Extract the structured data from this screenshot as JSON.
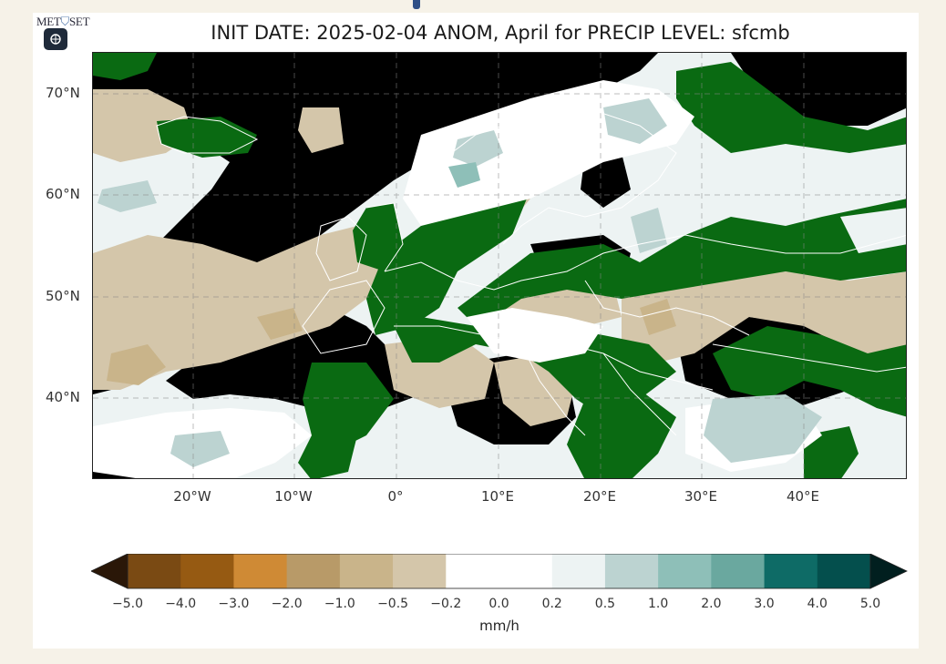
{
  "header": {
    "logo_text_left": "MET",
    "logo_text_right": "SET",
    "logo_icon": "shield-icon",
    "menu_icon": "menu-icon"
  },
  "map": {
    "title": "INIT DATE: 2025-02-04 ANOM, April for PRECIP LEVEL: sfcmb",
    "longitude_labels": [
      "20°W",
      "10°W",
      "0°",
      "10°E",
      "20°E",
      "30°E",
      "40°E"
    ],
    "latitude_labels": [
      "70°N",
      "60°N",
      "50°N",
      "40°N"
    ],
    "grid": true,
    "colors": {
      "below_min": "#2a1708",
      "above_max": "#011f1f",
      "land_border": "#ffffff"
    }
  },
  "colorbar": {
    "ticks": [
      "−5.0",
      "−4.0",
      "−3.0",
      "−2.0",
      "−1.0",
      "−0.5",
      "−0.2",
      "0.0",
      "0.2",
      "0.5",
      "1.0",
      "2.0",
      "3.0",
      "4.0",
      "5.0"
    ],
    "colors": [
      "#7a4a13",
      "#965a12",
      "#cf8a35",
      "#b89a68",
      "#c9b48a",
      "#d4c6aa",
      "#ffffff",
      "#ffffff",
      "#edf3f3",
      "#bcd3d1",
      "#8ebfb8",
      "#6aa89f",
      "#0e6b66",
      "#044f4d"
    ],
    "units": "mm/h"
  }
}
